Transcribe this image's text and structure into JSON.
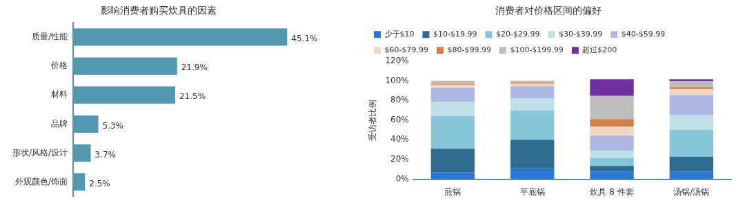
{
  "chart_data": [
    {
      "type": "bar",
      "title": "影响消费者购买炊具的因素",
      "orientation": "horizontal",
      "categories": [
        "质量/性能",
        "价格",
        "材料",
        "品牌",
        "形状/风格/设计",
        "外观颜色/饰面"
      ],
      "values": [
        45.1,
        21.9,
        21.5,
        5.3,
        3.7,
        2.5
      ],
      "color": "#5497b0",
      "value_labels": [
        "45.1%",
        "21.9%",
        "21.5%",
        "5.3%",
        "3.7%",
        "2.5%"
      ],
      "tick_labels": "y",
      "grid": false,
      "legend": false
    },
    {
      "type": "bar",
      "title": "消费者对价格区间的偏好",
      "stacked": true,
      "categories": [
        "煎锅",
        "平底锅",
        "炊具 8 件套",
        "汤锅/汤锅"
      ],
      "ylabel": "受访者比例",
      "ylim": [
        0,
        120
      ],
      "yticks": [
        {
          "value": 0,
          "label": "0%"
        },
        {
          "value": 20,
          "label": "20%"
        },
        {
          "value": 40,
          "label": "40%"
        },
        {
          "value": 60,
          "label": "60%"
        },
        {
          "value": 80,
          "label": "80%"
        },
        {
          "value": 100,
          "label": "100%"
        },
        {
          "value": 120,
          "label": "120%"
        }
      ],
      "grid": false,
      "legend": "top",
      "series": [
        {
          "name": "少于$10",
          "color": "#2a78d6",
          "values": [
            7,
            11,
            7.5,
            7.5
          ]
        },
        {
          "name": "$10-$19.99",
          "color": "#2f6a8f",
          "values": [
            24,
            29,
            6,
            15.5
          ]
        },
        {
          "name": "$20-$29.99",
          "color": "#86c6d8",
          "values": [
            33,
            30,
            8,
            27
          ]
        },
        {
          "name": "$30-$39.99",
          "color": "#bfe0e8",
          "values": [
            14.5,
            12,
            7.5,
            15
          ]
        },
        {
          "name": "$40-$59.99",
          "color": "#aeb8e3",
          "values": [
            14.5,
            12.5,
            15.5,
            20.5
          ]
        },
        {
          "name": "$60-$79.99",
          "color": "#f3d5c3",
          "values": [
            3,
            2.5,
            9,
            6
          ]
        },
        {
          "name": "$80-$99.99",
          "color": "#d3814a",
          "values": [
            1,
            1,
            7.5,
            2
          ]
        },
        {
          "name": "$100-$199.99",
          "color": "#bdbdbd",
          "values": [
            3,
            2,
            23.5,
            6
          ]
        },
        {
          "name": "超过$200",
          "color": "#7030a0",
          "values": [
            0,
            0,
            17,
            2
          ]
        }
      ]
    }
  ]
}
